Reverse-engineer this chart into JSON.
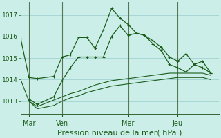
{
  "background_color": "#cceee8",
  "grid_color": "#99cccc",
  "line_color": "#1a5c1a",
  "xlabel": "Pression niveau de la mer( hPa )",
  "xlabel_fontsize": 8,
  "yticks": [
    1013,
    1014,
    1015,
    1016,
    1017
  ],
  "xtick_labels": [
    "Mar",
    "Ven",
    "Mer",
    "Jeu"
  ],
  "xtick_positions": [
    1,
    5,
    13,
    19
  ],
  "ylim": [
    1012.4,
    1017.6
  ],
  "xlim": [
    0,
    24
  ],
  "series1_x": [
    0,
    1,
    2,
    4,
    5,
    6,
    7,
    8,
    9,
    10,
    11,
    12,
    13,
    14,
    15,
    16,
    17,
    18,
    19,
    20,
    21,
    22,
    23
  ],
  "series1_y": [
    1015.9,
    1014.1,
    1014.05,
    1014.15,
    1015.05,
    1015.15,
    1015.95,
    1015.95,
    1015.45,
    1016.3,
    1017.3,
    1016.85,
    1016.55,
    1016.15,
    1016.05,
    1015.8,
    1015.5,
    1015.05,
    1014.85,
    1015.2,
    1014.7,
    1014.85,
    1014.3
  ],
  "series2_x": [
    1,
    2,
    4,
    5,
    6,
    7,
    8,
    9,
    10,
    11,
    12,
    13,
    14,
    15,
    16,
    17,
    18,
    19,
    20,
    21,
    22,
    23
  ],
  "series2_y": [
    1013.1,
    1012.85,
    1013.2,
    1013.95,
    1014.55,
    1015.05,
    1015.05,
    1015.05,
    1015.05,
    1016.0,
    1016.5,
    1016.05,
    1016.15,
    1016.05,
    1015.65,
    1015.35,
    1014.7,
    1014.55,
    1014.35,
    1014.7,
    1014.55,
    1014.3
  ],
  "series3_x": [
    0,
    1,
    2,
    4,
    5,
    6,
    7,
    8,
    9,
    10,
    11,
    12,
    13,
    14,
    15,
    16,
    17,
    18,
    19,
    20,
    21,
    22,
    23
  ],
  "series3_y": [
    1014.0,
    1013.0,
    1012.75,
    1013.05,
    1013.2,
    1013.35,
    1013.45,
    1013.6,
    1013.75,
    1013.85,
    1013.95,
    1014.0,
    1014.05,
    1014.1,
    1014.15,
    1014.2,
    1014.25,
    1014.3,
    1014.3,
    1014.3,
    1014.3,
    1014.3,
    1014.2
  ],
  "series4_x": [
    1,
    2,
    4,
    5,
    6,
    7,
    8,
    9,
    10,
    11,
    12,
    13,
    14,
    15,
    16,
    17,
    18,
    19,
    20,
    21,
    22,
    23
  ],
  "series4_y": [
    1013.0,
    1012.65,
    1012.8,
    1013.0,
    1013.15,
    1013.25,
    1013.4,
    1013.5,
    1013.6,
    1013.7,
    1013.75,
    1013.8,
    1013.85,
    1013.9,
    1013.95,
    1014.0,
    1014.05,
    1014.1,
    1014.1,
    1014.1,
    1014.1,
    1014.0
  ],
  "vline_x": [
    1,
    5,
    13,
    19
  ]
}
